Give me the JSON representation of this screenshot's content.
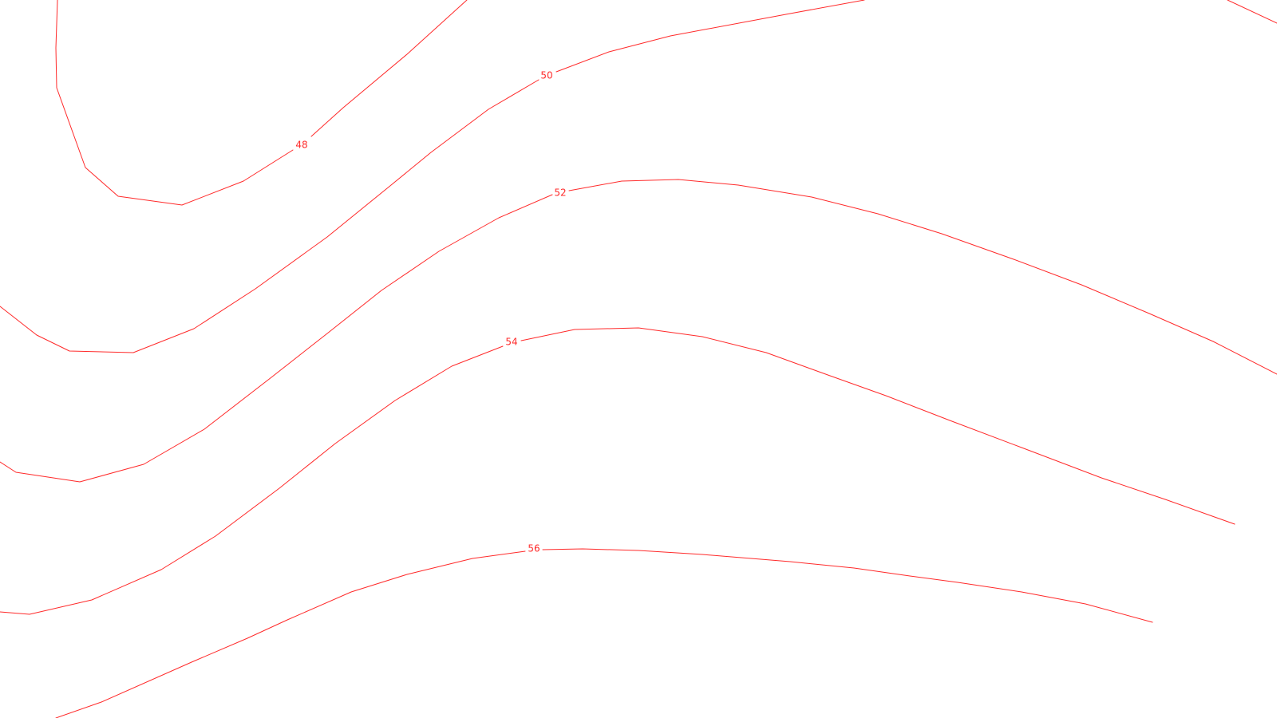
{
  "map": {
    "background_color": "#ffffff",
    "contour_color": "#ff2a2a",
    "contours": [
      {
        "level": "48",
        "label": "48"
      },
      {
        "level": "50",
        "label": "50"
      },
      {
        "level": "52",
        "label": "52"
      },
      {
        "level": "54",
        "label": "54"
      },
      {
        "level": "56",
        "label": "56"
      }
    ]
  }
}
